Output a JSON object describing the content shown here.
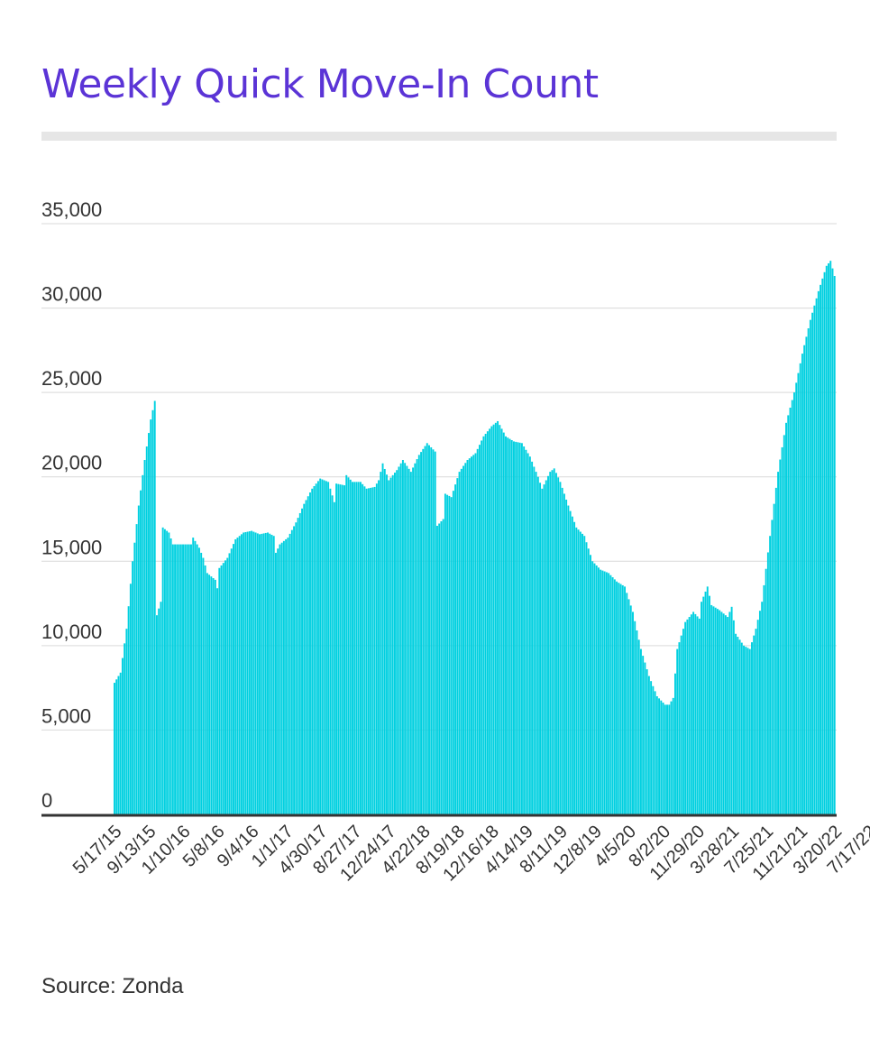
{
  "title": "Weekly Quick Move-In Count",
  "source": "Source: Zonda",
  "colors": {
    "title": "#5b34d6",
    "bars": "#00d0e0",
    "grid": "#d9d9d9",
    "axis": "#333333"
  },
  "chart_data": {
    "type": "bar",
    "title": "Weekly Quick Move-In Count",
    "xlabel": "",
    "ylabel": "",
    "ylim": [
      0,
      35000
    ],
    "yticks": [
      0,
      5000,
      10000,
      15000,
      20000,
      25000,
      30000,
      35000
    ],
    "ytick_labels": [
      "0",
      "5,000",
      "10,000",
      "15,000",
      "20,000",
      "25,000",
      "30,000",
      "35,000"
    ],
    "grid": true,
    "legend": "none",
    "x_tick_labels": [
      "5/17/15",
      "9/13/15",
      "1/10/16",
      "5/8/16",
      "9/4/16",
      "1/1/17",
      "4/30/17",
      "8/27/17",
      "12/24/17",
      "4/22/18",
      "8/19/18",
      "12/16/18",
      "4/14/19",
      "8/11/19",
      "12/8/19",
      "4/5/20",
      "8/2/20",
      "11/29/20",
      "3/28/21",
      "7/25/21",
      "11/21/21",
      "3/20/22",
      "7/17/22"
    ],
    "series_start_week": "5/17/15",
    "keyframes": [
      [
        "5/17/15",
        7800
      ],
      [
        "6/7/15",
        8400
      ],
      [
        "6/28/15",
        11000
      ],
      [
        "7/19/15",
        15000
      ],
      [
        "8/9/15",
        18300
      ],
      [
        "8/30/15",
        21000
      ],
      [
        "9/20/15",
        23400
      ],
      [
        "10/4/15",
        24500
      ],
      [
        "10/11/15",
        11800
      ],
      [
        "10/25/15",
        12600
      ],
      [
        "11/1/15",
        17000
      ],
      [
        "11/22/15",
        16700
      ],
      [
        "12/6/15",
        16000
      ],
      [
        "2/7/16",
        16000
      ],
      [
        "2/14/16",
        16400
      ],
      [
        "3/6/16",
        15800
      ],
      [
        "3/20/16",
        15200
      ],
      [
        "4/3/16",
        14300
      ],
      [
        "5/1/16",
        13900
      ],
      [
        "5/8/16",
        13400
      ],
      [
        "5/15/16",
        14600
      ],
      [
        "6/12/16",
        15200
      ],
      [
        "7/10/16",
        16300
      ],
      [
        "8/7/16",
        16700
      ],
      [
        "9/4/16",
        16800
      ],
      [
        "10/2/16",
        16600
      ],
      [
        "10/30/16",
        16700
      ],
      [
        "11/20/16",
        16500
      ],
      [
        "11/27/16",
        15500
      ],
      [
        "12/11/16",
        16000
      ],
      [
        "1/8/17",
        16400
      ],
      [
        "2/5/17",
        17300
      ],
      [
        "3/5/17",
        18400
      ],
      [
        "4/2/17",
        19300
      ],
      [
        "4/30/17",
        19900
      ],
      [
        "5/28/17",
        19700
      ],
      [
        "6/18/17",
        18500
      ],
      [
        "6/25/17",
        19600
      ],
      [
        "7/23/17",
        19500
      ],
      [
        "7/30/17",
        20100
      ],
      [
        "8/20/17",
        19700
      ],
      [
        "9/17/17",
        19700
      ],
      [
        "10/8/17",
        19300
      ],
      [
        "11/5/17",
        19400
      ],
      [
        "11/19/17",
        19800
      ],
      [
        "12/3/17",
        20800
      ],
      [
        "12/24/17",
        19800
      ],
      [
        "1/21/18",
        20400
      ],
      [
        "2/11/18",
        21000
      ],
      [
        "3/11/18",
        20300
      ],
      [
        "4/8/18",
        21300
      ],
      [
        "5/6/18",
        22000
      ],
      [
        "6/3/18",
        21500
      ],
      [
        "6/10/18",
        17100
      ],
      [
        "7/1/18",
        17500
      ],
      [
        "7/8/18",
        19000
      ],
      [
        "7/29/18",
        18800
      ],
      [
        "8/26/18",
        20300
      ],
      [
        "9/23/18",
        21000
      ],
      [
        "10/21/18",
        21400
      ],
      [
        "11/18/18",
        22400
      ],
      [
        "12/16/18",
        23000
      ],
      [
        "1/6/19",
        23300
      ],
      [
        "2/3/19",
        22400
      ],
      [
        "3/3/19",
        22100
      ],
      [
        "3/31/19",
        22000
      ],
      [
        "4/28/19",
        21200
      ],
      [
        "5/26/19",
        20000
      ],
      [
        "6/9/19",
        19300
      ],
      [
        "7/7/19",
        20300
      ],
      [
        "7/21/19",
        20500
      ],
      [
        "8/11/19",
        19700
      ],
      [
        "9/8/19",
        18300
      ],
      [
        "10/6/19",
        17000
      ],
      [
        "11/3/19",
        16500
      ],
      [
        "12/1/19",
        15000
      ],
      [
        "12/29/19",
        14500
      ],
      [
        "1/26/20",
        14300
      ],
      [
        "2/23/20",
        13800
      ],
      [
        "3/22/20",
        13500
      ],
      [
        "4/19/20",
        12000
      ],
      [
        "5/17/20",
        9800
      ],
      [
        "6/14/20",
        8200
      ],
      [
        "7/12/20",
        7000
      ],
      [
        "8/9/20",
        6500
      ],
      [
        "8/23/20",
        6500
      ],
      [
        "9/6/20",
        6900
      ],
      [
        "9/20/20",
        9800
      ],
      [
        "10/18/20",
        11400
      ],
      [
        "11/15/20",
        12000
      ],
      [
        "12/6/20",
        11600
      ],
      [
        "12/13/20",
        12600
      ],
      [
        "1/3/21",
        13500
      ],
      [
        "1/17/21",
        12400
      ],
      [
        "2/14/21",
        12100
      ],
      [
        "3/14/21",
        11700
      ],
      [
        "3/28/21",
        12300
      ],
      [
        "4/11/21",
        10700
      ],
      [
        "5/9/21",
        10000
      ],
      [
        "5/30/21",
        9800
      ],
      [
        "6/20/21",
        11000
      ],
      [
        "7/11/21",
        12600
      ],
      [
        "8/8/21",
        16500
      ],
      [
        "9/5/21",
        20300
      ],
      [
        "10/3/21",
        23200
      ],
      [
        "10/31/21",
        25000
      ],
      [
        "11/28/21",
        27300
      ],
      [
        "12/26/21",
        29300
      ],
      [
        "1/23/22",
        31000
      ],
      [
        "2/20/22",
        32500
      ],
      [
        "3/6/22",
        32800
      ],
      [
        "3/20/22",
        31900
      ]
    ]
  }
}
